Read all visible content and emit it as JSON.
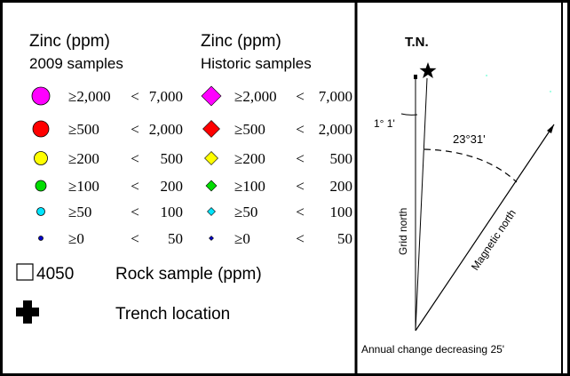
{
  "legend": {
    "col1_heading_line1": "Zinc (ppm)",
    "col1_heading_line2": "2009 samples",
    "col2_heading_line1": "Zinc (ppm)",
    "col2_heading_line2": "Historic samples",
    "rows": [
      {
        "min": "≥2,000",
        "op": "<",
        "max": "7,000",
        "color": "#ff00ff"
      },
      {
        "min": "≥500",
        "op": "<",
        "max": "2,000",
        "color": "#ff0000"
      },
      {
        "min": "≥200",
        "op": "<",
        "max": "500",
        "color": "#ffff00"
      },
      {
        "min": "≥100",
        "op": "<",
        "max": "200",
        "color": "#00dd00"
      },
      {
        "min": "≥50",
        "op": "<",
        "max": "100",
        "color": "#00e5ff"
      },
      {
        "min": "≥0",
        "op": "<",
        "max": "50",
        "color": "#0000cc"
      }
    ],
    "rock_sample_value": "4050",
    "rock_sample_label": "Rock sample (ppm)",
    "trench_label": "Trench location"
  },
  "north_arrow": {
    "true_north_label": "T.N.",
    "grid_angle": "1° 1'",
    "declination_angle": "23°31'",
    "grid_north_label": "Grid north",
    "magnetic_north_label": "Magnetic north",
    "annual_change": "Annual change decreasing 25'"
  }
}
